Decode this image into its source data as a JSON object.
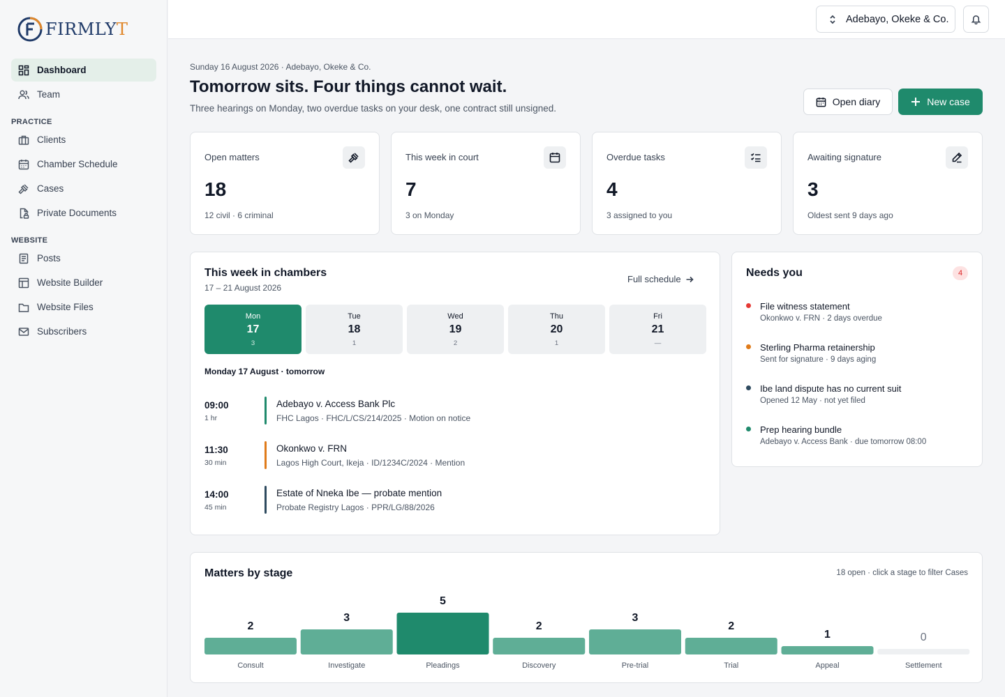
{
  "brand": {
    "name_main": "FIRMLY",
    "name_accent": "T"
  },
  "sidebar": {
    "items_top": [
      {
        "label": "Dashboard",
        "icon": "dashboard-icon",
        "active": true
      },
      {
        "label": "Team",
        "icon": "team-icon",
        "active": false
      }
    ],
    "practice_heading": "PRACTICE",
    "practice_items": [
      {
        "label": "Clients",
        "icon": "briefcase-icon"
      },
      {
        "label": "Chamber Schedule",
        "icon": "calendar-icon"
      },
      {
        "label": "Cases",
        "icon": "gavel-icon"
      },
      {
        "label": "Private Documents",
        "icon": "locked-document-icon"
      }
    ],
    "website_heading": "WEBSITE",
    "website_items": [
      {
        "label": "Posts",
        "icon": "posts-icon"
      },
      {
        "label": "Website Builder",
        "icon": "layout-icon"
      },
      {
        "label": "Website Files",
        "icon": "folder-icon"
      },
      {
        "label": "Subscribers",
        "icon": "mail-icon"
      }
    ]
  },
  "topbar": {
    "firm_name": "Adebayo, Okeke & Co."
  },
  "header": {
    "dateline": "Sunday 16 August 2026 · Adebayo, Okeke & Co.",
    "headline": "Tomorrow sits. Four things cannot wait.",
    "subline": "Three hearings on Monday, two overdue tasks on your desk, one contract still unsigned.",
    "open_diary": "Open diary",
    "new_case": "New case"
  },
  "stats": [
    {
      "label": "Open matters",
      "value": "18",
      "note": "12 civil · 6 criminal",
      "icon": "gavel-icon"
    },
    {
      "label": "This week in court",
      "value": "7",
      "note": "3 on Monday",
      "icon": "calendar-icon"
    },
    {
      "label": "Overdue tasks",
      "value": "4",
      "note": "3 assigned to you",
      "icon": "checklist-icon"
    },
    {
      "label": "Awaiting signature",
      "value": "3",
      "note": "Oldest sent 9 days ago",
      "icon": "pen-icon"
    }
  ],
  "week": {
    "title": "This week in chambers",
    "range": "17 – 21 August 2026",
    "full_schedule": "Full schedule",
    "days": [
      {
        "name": "Mon",
        "num": "17",
        "count": "3",
        "active": true
      },
      {
        "name": "Tue",
        "num": "18",
        "count": "1",
        "active": false
      },
      {
        "name": "Wed",
        "num": "19",
        "count": "2",
        "active": false
      },
      {
        "name": "Thu",
        "num": "20",
        "count": "1",
        "active": false
      },
      {
        "name": "Fri",
        "num": "21",
        "count": "—",
        "active": false
      }
    ],
    "day_label": "Monday 17 August · tomorrow",
    "appointments": [
      {
        "time": "09:00",
        "duration": "1 hr",
        "case": "Adebayo v. Access Bank Plc",
        "meta": "FHC Lagos · FHC/L/CS/214/2025 · Motion on notice",
        "color": "#1f8a6c"
      },
      {
        "time": "11:30",
        "duration": "30 min",
        "case": "Okonkwo v. FRN",
        "meta": "Lagos High Court, Ikeja · ID/1234C/2024 · Mention",
        "color": "#e07b1a"
      },
      {
        "time": "14:00",
        "duration": "45 min",
        "case": "Estate of Nneka Ibe — probate mention",
        "meta": "Probate Registry Lagos · PPR/LG/88/2026",
        "color": "#2e4a5f"
      }
    ]
  },
  "needs": {
    "title": "Needs you",
    "count": "4",
    "items": [
      {
        "title": "File witness statement",
        "meta": "Okonkwo v. FRN · 2 days overdue",
        "color": "#e53935"
      },
      {
        "title": "Sterling Pharma retainership",
        "meta": "Sent for signature · 9 days aging",
        "color": "#e07b1a"
      },
      {
        "title": "Ibe land dispute has no current suit",
        "meta": "Opened 12 May · not yet filed",
        "color": "#2e4a5f"
      },
      {
        "title": "Prep hearing bundle",
        "meta": "Adebayo v. Access Bank · due tomorrow 08:00",
        "color": "#1f8a6c"
      }
    ]
  },
  "stages": {
    "title": "Matters by stage",
    "hint": "18 open · click a stage to filter Cases"
  },
  "chart_data": {
    "type": "bar",
    "title": "Matters by stage",
    "categories": [
      "Consult",
      "Investigate",
      "Pleadings",
      "Discovery",
      "Pre-trial",
      "Trial",
      "Appeal",
      "Settlement"
    ],
    "values": [
      2,
      3,
      5,
      2,
      3,
      2,
      1,
      0
    ],
    "highlight": "Pleadings",
    "colors": {
      "bar": "#5fae96",
      "highlight": "#1f8a6c",
      "empty": "#eef0f2"
    }
  }
}
